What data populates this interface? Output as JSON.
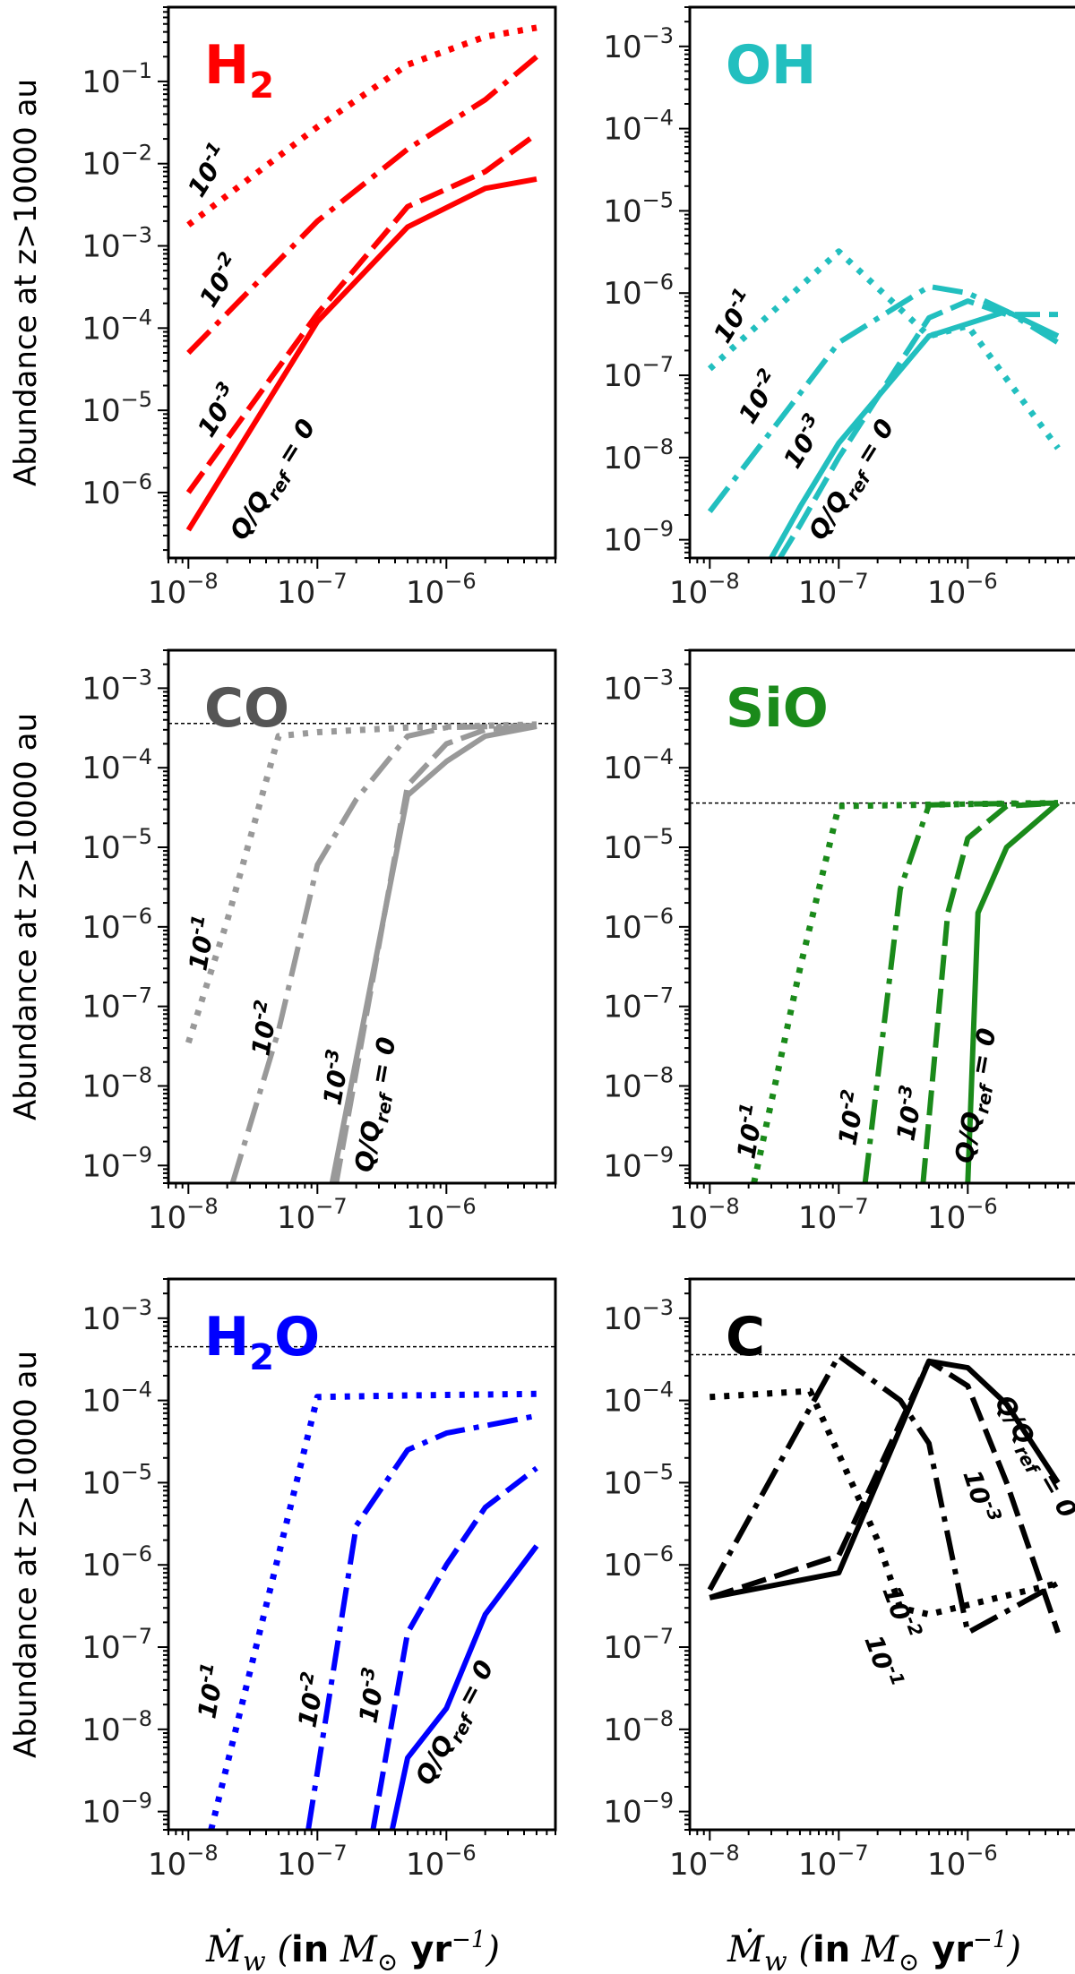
{
  "chart_data": [
    {
      "type": "line",
      "title": "H₂",
      "title_parts": [
        "H",
        "2"
      ],
      "color": "#ff0000",
      "ylabel": "Abundance at z>10000 au",
      "xlabel": "",
      "xlog": true,
      "ylog": true,
      "xlim": [
        7e-09,
        7e-06
      ],
      "ylim": [
        1.6e-07,
        0.8
      ],
      "yticks": [
        -6,
        -5,
        -4,
        -3,
        -2,
        -1
      ],
      "xticks": [
        -8,
        -7,
        -6
      ],
      "reference_line": null,
      "series": [
        {
          "name": "Q/Qref = 0",
          "style": "solid",
          "label": "Q/Q_ref = 0",
          "x": [
            1e-08,
            1e-07,
            5e-07,
            2e-06,
            5e-06
          ],
          "y": [
            3.5e-07,
            0.00012,
            0.0017,
            0.005,
            0.0065
          ]
        },
        {
          "name": "10-3",
          "style": "dashed",
          "label": "10^-3",
          "x": [
            1e-08,
            1e-07,
            5e-07,
            2e-06,
            5e-06
          ],
          "y": [
            1e-06,
            0.00015,
            0.003,
            0.008,
            0.023
          ]
        },
        {
          "name": "10-2",
          "style": "dashdot",
          "label": "10^-2",
          "x": [
            1e-08,
            1e-07,
            5e-07,
            2e-06,
            5e-06
          ],
          "y": [
            5e-05,
            0.002,
            0.015,
            0.06,
            0.2
          ]
        },
        {
          "name": "10-1",
          "style": "dotted",
          "label": "10^-1",
          "x": [
            1e-08,
            1e-07,
            5e-07,
            2e-06,
            5e-06
          ],
          "y": [
            0.0018,
            0.028,
            0.16,
            0.35,
            0.45
          ]
        }
      ]
    },
    {
      "type": "line",
      "title": "OH",
      "title_parts": [
        "OH",
        ""
      ],
      "color": "#22bfbf",
      "ylabel": "",
      "xlabel": "",
      "xlog": true,
      "ylog": true,
      "xlim": [
        7e-09,
        7e-06
      ],
      "ylim": [
        6e-10,
        0.003
      ],
      "yticks": [
        -9,
        -8,
        -7,
        -6,
        -5,
        -4,
        -3
      ],
      "xticks": [
        -8,
        -7,
        -6
      ],
      "reference_line": null,
      "series": [
        {
          "name": "Q/Qref = 0",
          "style": "solid",
          "label": "Q/Q_ref = 0",
          "x": [
            3e-08,
            5e-08,
            1e-07,
            5e-07,
            2e-06,
            5e-06
          ],
          "y": [
            6e-10,
            2.5e-09,
            1.5e-08,
            3e-07,
            6e-07,
            3e-07
          ]
        },
        {
          "name": "10-3",
          "style": "dashed",
          "label": "10^-3",
          "x": [
            3.5e-08,
            5e-08,
            1e-07,
            5e-07,
            1e-06,
            2e-06,
            5e-06
          ],
          "y": [
            6e-10,
            1.5e-09,
            1e-08,
            5e-07,
            8e-07,
            5.5e-07,
            5.5e-07
          ]
        },
        {
          "name": "10-2",
          "style": "dashdot",
          "label": "10^-2",
          "x": [
            1e-08,
            5e-08,
            1e-07,
            5e-07,
            1e-06,
            2e-06,
            5e-06
          ],
          "y": [
            2.2e-09,
            6e-08,
            2.5e-07,
            1.2e-06,
            1e-06,
            6e-07,
            2.5e-07
          ]
        },
        {
          "name": "10-1",
          "style": "dotted",
          "label": "10^-1",
          "x": [
            1e-08,
            1e-07,
            5e-07,
            1e-06,
            2e-06,
            5e-06
          ],
          "y": [
            1.2e-07,
            3.2e-06,
            3e-07,
            4e-07,
            9e-08,
            1.3e-08
          ]
        }
      ]
    },
    {
      "type": "line",
      "title": "CO",
      "title_parts": [
        "CO",
        ""
      ],
      "color": "#999999",
      "title_color": "#555555",
      "ylabel": "Abundance at  z>10000 au",
      "xlabel": "",
      "xlog": true,
      "ylog": true,
      "xlim": [
        7e-09,
        7e-06
      ],
      "ylim": [
        6e-10,
        0.003
      ],
      "yticks": [
        -9,
        -8,
        -7,
        -6,
        -5,
        -4,
        -3
      ],
      "xticks": [
        -8,
        -7,
        -6
      ],
      "reference_line": 0.00036,
      "series": [
        {
          "name": "Q/Qref = 0",
          "style": "solid",
          "label": "Q/Q_ref = 0",
          "x": [
            1.3e-07,
            5e-07,
            1e-06,
            2e-06,
            5e-06
          ],
          "y": [
            6e-10,
            4.5e-05,
            0.00012,
            0.00025,
            0.00033
          ]
        },
        {
          "name": "10-3",
          "style": "dashed",
          "label": "10^-3",
          "x": [
            1.4e-07,
            5e-07,
            1e-06,
            2e-06,
            5e-06
          ],
          "y": [
            6e-10,
            6e-05,
            0.0002,
            0.0003,
            0.00034
          ]
        },
        {
          "name": "10-2",
          "style": "dashdot",
          "label": "10^-2",
          "x": [
            2.2e-08,
            5e-08,
            1e-07,
            2e-07,
            5e-07,
            1e-06,
            5e-06
          ],
          "y": [
            6e-10,
            5e-08,
            6e-06,
            4e-05,
            0.00025,
            0.00032,
            0.00034
          ]
        },
        {
          "name": "10-1",
          "style": "dotted",
          "label": "10^-1",
          "x": [
            1e-08,
            2e-08,
            5e-08,
            1e-07,
            5e-07,
            5e-06
          ],
          "y": [
            3.5e-08,
            1.2e-06,
            0.00025,
            0.00028,
            0.00032,
            0.00035
          ]
        }
      ]
    },
    {
      "type": "line",
      "title": "SiO",
      "title_parts": [
        "SiO",
        ""
      ],
      "color": "#1a8a1a",
      "ylabel": "",
      "xlabel": "",
      "xlog": true,
      "ylog": true,
      "xlim": [
        7e-09,
        7e-06
      ],
      "ylim": [
        6e-10,
        0.003
      ],
      "yticks": [
        -9,
        -8,
        -7,
        -6,
        -5,
        -4,
        -3
      ],
      "xticks": [
        -8,
        -7,
        -6
      ],
      "reference_line": 3.6e-05,
      "series": [
        {
          "name": "Q/Qref = 0",
          "style": "solid",
          "label": "Q/Q_ref = 0",
          "x": [
            1e-06,
            1.2e-06,
            2e-06,
            5e-06
          ],
          "y": [
            6e-10,
            1.5e-06,
            1e-05,
            3.6e-05
          ]
        },
        {
          "name": "10-3",
          "style": "dashed",
          "label": "10^-3",
          "x": [
            4.5e-07,
            7e-07,
            1e-06,
            2e-06,
            5e-06
          ],
          "y": [
            6e-10,
            1.5e-06,
            1.3e-05,
            3.3e-05,
            3.6e-05
          ]
        },
        {
          "name": "10-2",
          "style": "dashdot",
          "label": "10^-2",
          "x": [
            1.6e-07,
            3e-07,
            5e-07,
            1e-06,
            5e-06
          ],
          "y": [
            6e-10,
            3e-06,
            3.4e-05,
            3.5e-05,
            3.6e-05
          ]
        },
        {
          "name": "10-1",
          "style": "dotted",
          "label": "10^-1",
          "x": [
            2.2e-08,
            5e-08,
            1e-07,
            1e-06,
            5e-06
          ],
          "y": [
            6e-10,
            3e-07,
            3.3e-05,
            3.5e-05,
            3.6e-05
          ]
        }
      ]
    },
    {
      "type": "line",
      "title": "H₂O",
      "title_parts": [
        "H",
        "2",
        "O"
      ],
      "color": "#0000ff",
      "ylabel": "Abundance at z>10000 au",
      "xlabel": "Ṁw (in M⊙ yr⁻¹)",
      "xlog": true,
      "ylog": true,
      "xlim": [
        7e-09,
        7e-06
      ],
      "ylim": [
        6e-10,
        0.003
      ],
      "yticks": [
        -9,
        -8,
        -7,
        -6,
        -5,
        -4,
        -3
      ],
      "xticks": [
        -8,
        -7,
        -6
      ],
      "reference_line": 0.00045,
      "series": [
        {
          "name": "Q/Qref = 0",
          "style": "solid",
          "label": "Q/Q_ref = 0",
          "x": [
            3.8e-07,
            5e-07,
            1e-06,
            2e-06,
            5e-06
          ],
          "y": [
            6e-10,
            4.5e-09,
            1.8e-08,
            2.5e-07,
            1.7e-06
          ]
        },
        {
          "name": "10-3",
          "style": "dashed",
          "label": "10^-3",
          "x": [
            2.7e-07,
            5e-07,
            1e-06,
            2e-06,
            5e-06
          ],
          "y": [
            6e-10,
            1.5e-07,
            1e-06,
            5e-06,
            1.5e-05
          ]
        },
        {
          "name": "10-2",
          "style": "dashdot",
          "label": "10^-2",
          "x": [
            8.5e-08,
            2e-07,
            5e-07,
            1e-06,
            5e-06
          ],
          "y": [
            6e-10,
            3e-06,
            2.5e-05,
            4e-05,
            6.5e-05
          ]
        },
        {
          "name": "10-1",
          "style": "dotted",
          "label": "10^-1",
          "x": [
            1.5e-08,
            1e-07,
            5e-07,
            5e-06
          ],
          "y": [
            6e-10,
            0.00011,
            0.000115,
            0.00012
          ]
        }
      ]
    },
    {
      "type": "line",
      "title": "C",
      "title_parts": [
        "C",
        ""
      ],
      "color": "#000000",
      "ylabel": "",
      "xlabel": "Ṁw (in M⊙ yr⁻¹)",
      "xlog": true,
      "ylog": true,
      "xlim": [
        7e-09,
        7e-06
      ],
      "ylim": [
        6e-10,
        0.003
      ],
      "yticks": [
        -9,
        -8,
        -7,
        -6,
        -5,
        -4,
        -3
      ],
      "xticks": [
        -8,
        -7,
        -6
      ],
      "reference_line": 0.00036,
      "series": [
        {
          "name": "Q/Qref = 0",
          "style": "solid",
          "label": "Q/Q_ref = 0",
          "x": [
            1e-08,
            1e-07,
            5e-07,
            1e-06,
            2e-06,
            5e-06
          ],
          "y": [
            4e-07,
            8e-07,
            0.0003,
            0.00025,
            9e-05,
            1e-05
          ]
        },
        {
          "name": "10-3",
          "style": "dashed",
          "label": "10^-3",
          "x": [
            1e-08,
            1e-07,
            5e-07,
            1e-06,
            2e-06,
            5e-06
          ],
          "y": [
            4e-07,
            1.3e-06,
            0.0003,
            0.00015,
            1e-05,
            1.5e-07
          ]
        },
        {
          "name": "10-2",
          "style": "dashdot",
          "label": "10^-2",
          "x": [
            1e-08,
            1e-07,
            3e-07,
            5e-07,
            1e-06,
            5e-06
          ],
          "y": [
            5e-07,
            0.00035,
            0.0001,
            3e-05,
            1.5e-07,
            6e-07
          ]
        },
        {
          "name": "10-1",
          "style": "dotted",
          "label": "10^-1",
          "x": [
            1e-08,
            6e-08,
            2e-07,
            3e-07,
            5e-07,
            5e-06
          ],
          "y": [
            0.00011,
            0.00013,
            2e-06,
            3e-07,
            2.5e-07,
            6e-07
          ]
        }
      ]
    }
  ],
  "curve_labels": {
    "q0": "Q/Q",
    "q0_sub": "ref",
    "q0_tail": " = 0",
    "base": "10",
    "exp1": "-1",
    "exp2": "-2",
    "exp3": "-3"
  },
  "xaxis_label": {
    "symbol": "Ṁ",
    "symbol_sub": "w",
    "open": " (",
    "in": "in",
    "msun": " M",
    "msun_sub": "⊙",
    "yr": " yr",
    "yr_exp": "−1",
    "close": ")"
  },
  "tick_base": "10"
}
